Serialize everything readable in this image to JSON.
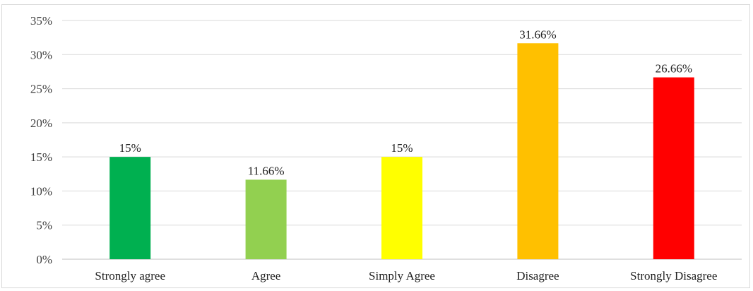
{
  "chart_data": {
    "type": "bar",
    "title": "",
    "xlabel": "",
    "ylabel": "",
    "categories": [
      "Strongly agree",
      "Agree",
      "Simply Agree",
      "Disagree",
      "Strongly Disagree"
    ],
    "values": [
      15,
      11.66,
      15,
      31.66,
      26.66
    ],
    "data_labels": [
      "15%",
      "11.66%",
      "15%",
      "31.66%",
      "26.66%"
    ],
    "colors": [
      "#00b050",
      "#92d050",
      "#ffff00",
      "#ffc000",
      "#ff0000"
    ],
    "ylim": [
      0,
      35
    ],
    "yticks": [
      0,
      5,
      10,
      15,
      20,
      25,
      30,
      35
    ],
    "ytick_labels": [
      "0%",
      "5%",
      "10%",
      "15%",
      "20%",
      "25%",
      "30%",
      "35%"
    ],
    "grid": true,
    "legend": "none"
  }
}
